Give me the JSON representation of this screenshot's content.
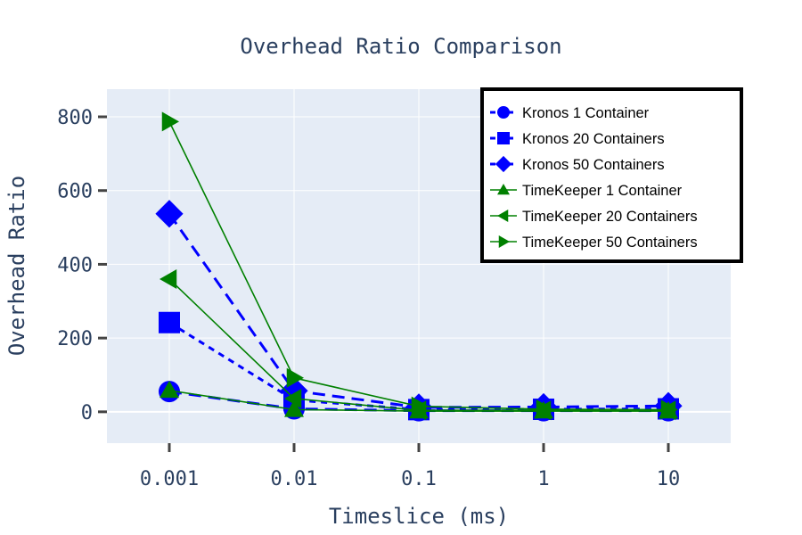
{
  "chart_data": {
    "type": "line",
    "title": "Overhead Ratio Comparison",
    "xlabel": "Timeslice (ms)",
    "ylabel": "Overhead Ratio",
    "x_scale": "log",
    "categories": [
      "0.001",
      "0.01",
      "0.1",
      "1",
      "10"
    ],
    "x": [
      0.001,
      0.01,
      0.1,
      1,
      10
    ],
    "ylim": [
      -85,
      875
    ],
    "yticks": [
      0,
      200,
      400,
      600,
      800
    ],
    "ytick_labels": [
      "0",
      "200",
      "400",
      "600",
      "800"
    ],
    "grid": true,
    "legend_position": "top-right",
    "colors": {
      "kronos": "#0000ff",
      "timekeeper": "#008000",
      "plot_bg": "#e5ecf6",
      "grid": "#ffffff",
      "text": "#2a3f5f"
    },
    "series": [
      {
        "name": "Kronos 1 Container",
        "group": "kronos",
        "marker": "circle",
        "dash": "dash-long",
        "values": [
          55,
          8,
          3,
          3,
          3
        ]
      },
      {
        "name": "Kronos 20 Containers",
        "group": "kronos",
        "marker": "square",
        "dash": "dash-short",
        "values": [
          242,
          32,
          6,
          7,
          8
        ]
      },
      {
        "name": "Kronos 50 Containers",
        "group": "kronos",
        "marker": "diamond",
        "dash": "dash-long",
        "values": [
          537,
          57,
          12,
          13,
          16
        ]
      },
      {
        "name": "TimeKeeper 1 Container",
        "group": "timekeeper",
        "marker": "triangle-up",
        "dash": "solid",
        "values": [
          58,
          6,
          2,
          2,
          2
        ]
      },
      {
        "name": "TimeKeeper 20 Containers",
        "group": "timekeeper",
        "marker": "triangle-left",
        "dash": "solid",
        "values": [
          360,
          36,
          4,
          4,
          4
        ]
      },
      {
        "name": "TimeKeeper 50 Containers",
        "group": "timekeeper",
        "marker": "triangle-right",
        "dash": "solid",
        "values": [
          787,
          92,
          15,
          7,
          6
        ]
      }
    ]
  }
}
